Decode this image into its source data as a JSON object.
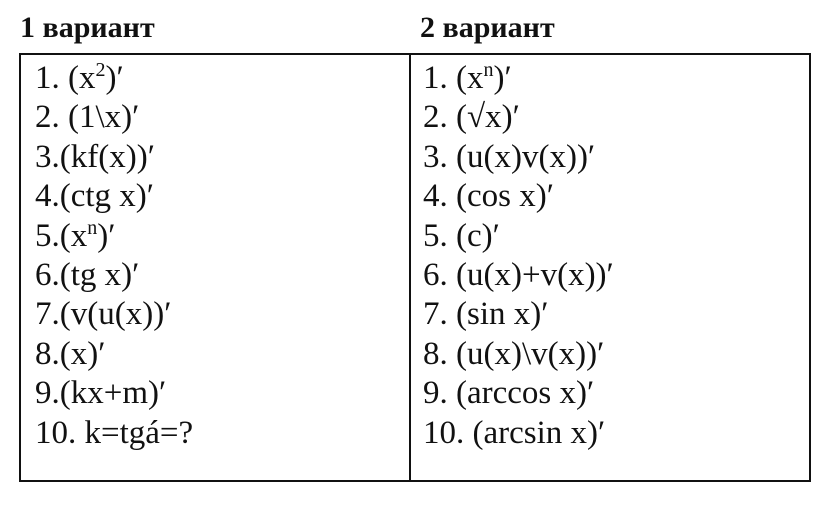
{
  "variants": [
    {
      "title": "1 вариант",
      "items": [
        {
          "num": "1. ",
          "expr": "(x",
          "sup": "2",
          "tail": ")′"
        },
        {
          "num": "2. ",
          "expr": "(1\\x)′",
          "sup": "",
          "tail": ""
        },
        {
          "num": "3.",
          "expr": "(kf(x))′",
          "sup": "",
          "tail": ""
        },
        {
          "num": "4.",
          "expr": "(ctg x)′",
          "sup": "",
          "tail": ""
        },
        {
          "num": "5.",
          "expr": "(x",
          "sup": "n",
          "tail": ")′"
        },
        {
          "num": "6.",
          "expr": "(tg x)′",
          "sup": "",
          "tail": ""
        },
        {
          "num": "7.",
          "expr": "(v(u(x))′",
          "sup": "",
          "tail": ""
        },
        {
          "num": "8.",
          "expr": "(x)′",
          "sup": "",
          "tail": ""
        },
        {
          "num": "9.",
          "expr": "(kx+m)′",
          "sup": "",
          "tail": ""
        },
        {
          "num": "10. ",
          "expr": "k=tgá=?",
          "sup": "",
          "tail": ""
        }
      ]
    },
    {
      "title": "2 вариант",
      "items": [
        {
          "num": "1. ",
          "expr": "(x",
          "sup": "n",
          "tail": ")′"
        },
        {
          "num": "2. ",
          "expr": "(√x)′",
          "sup": "",
          "tail": ""
        },
        {
          "num": "3. ",
          "expr": "(u(x)v(x))′",
          "sup": "",
          "tail": ""
        },
        {
          "num": "4. ",
          "expr": "(cos x)′",
          "sup": "",
          "tail": ""
        },
        {
          "num": "5. ",
          "expr": "(c)′",
          "sup": "",
          "tail": ""
        },
        {
          "num": "6. ",
          "expr": "(u(x)+v(x))′",
          "sup": "",
          "tail": ""
        },
        {
          "num": "7. ",
          "expr": "(sin x)′",
          "sup": "",
          "tail": ""
        },
        {
          "num": "8. ",
          "expr": "(u(x)\\v(x))′",
          "sup": "",
          "tail": ""
        },
        {
          "num": "9. ",
          "expr": "(arccos x)′",
          "sup": "",
          "tail": ""
        },
        {
          "num": "10. ",
          "expr": "(arcsin x)′",
          "sup": "",
          "tail": ""
        }
      ]
    }
  ]
}
